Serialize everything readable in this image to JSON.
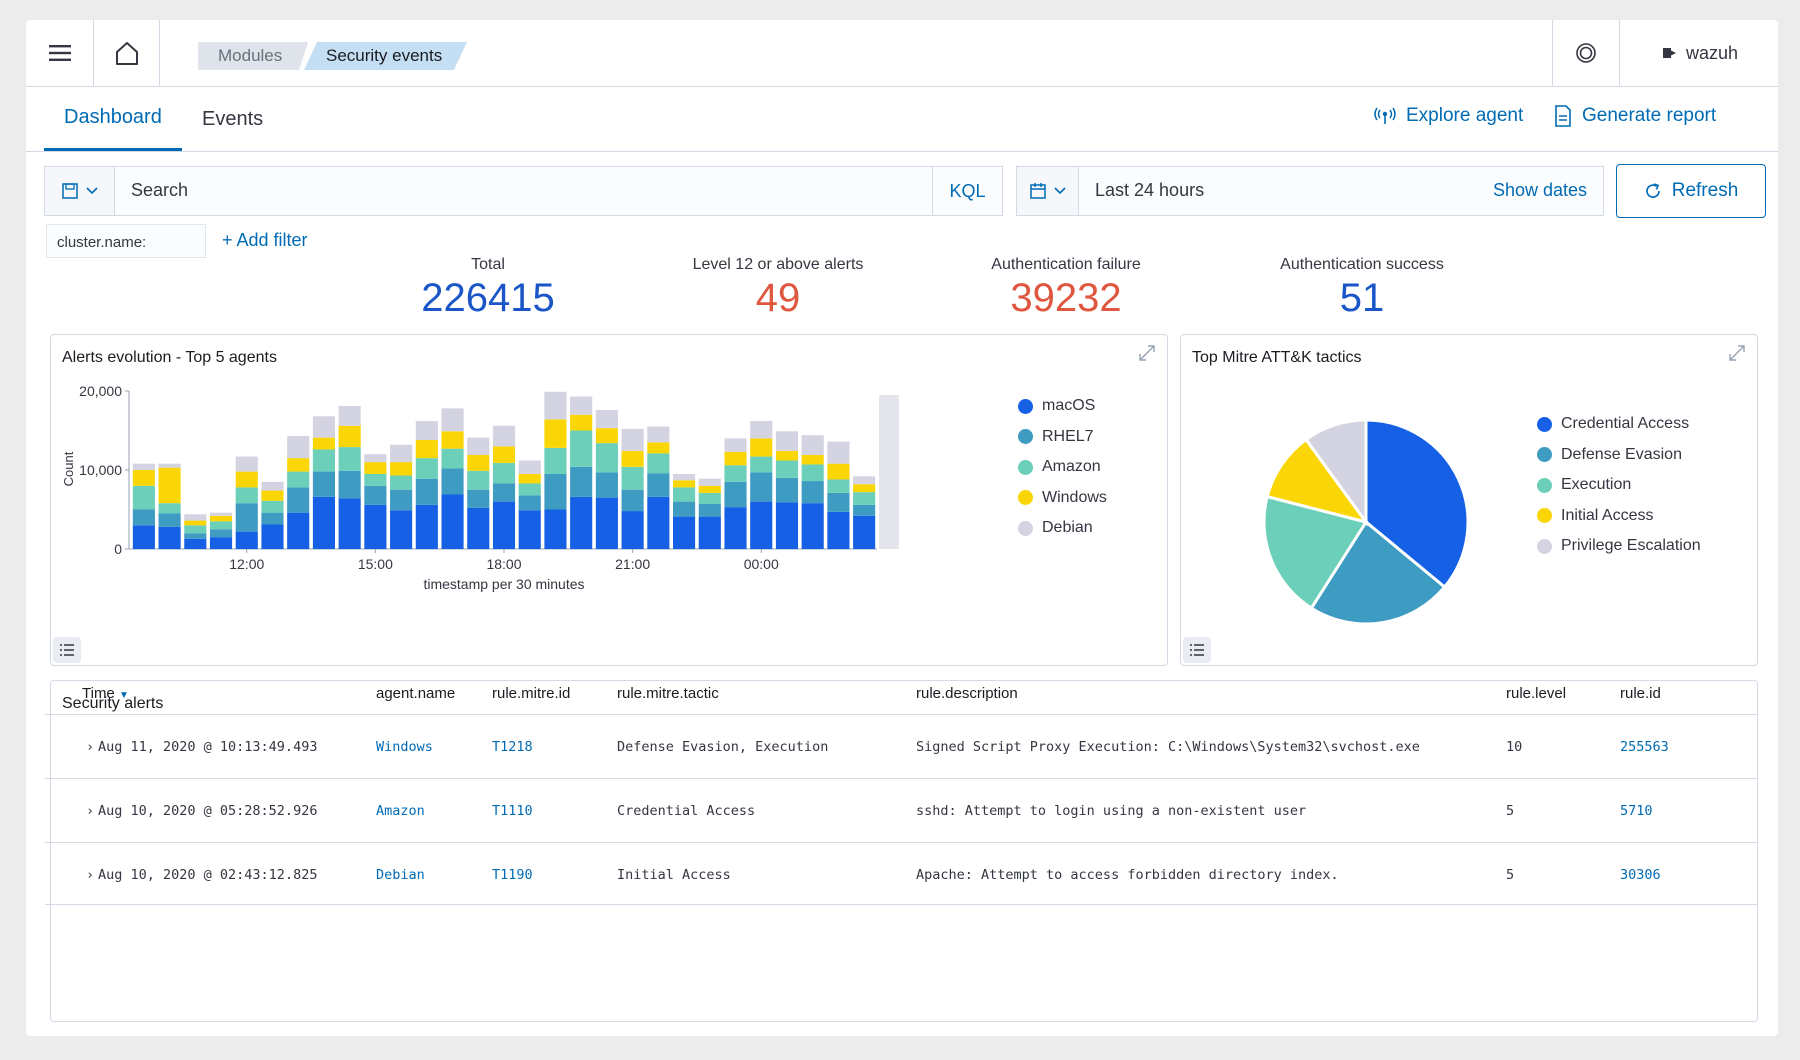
{
  "breadcrumbs": {
    "modules": "Modules",
    "current": "Security events"
  },
  "user": {
    "name": "wazuh"
  },
  "tabs": {
    "dashboard": "Dashboard",
    "events": "Events"
  },
  "actions": {
    "explore_agent": "Explore agent",
    "generate_report": "Generate report"
  },
  "query": {
    "placeholder": "Search",
    "kql": "KQL"
  },
  "date": {
    "range": "Last 24 hours",
    "show_dates": "Show dates",
    "refresh": "Refresh"
  },
  "filters": {
    "chip": "cluster.name:",
    "add": "+ Add filter"
  },
  "metrics": [
    {
      "label": "Total",
      "value": "226415",
      "color": "#1a56c8"
    },
    {
      "label": "Level 12 or above alerts",
      "value": "49",
      "color": "#e0573f"
    },
    {
      "label": "Authentication failure",
      "value": "39232",
      "color": "#e0573f"
    },
    {
      "label": "Authentication success",
      "value": "51",
      "color": "#1a56c8"
    }
  ],
  "colors": {
    "macOS": "#1660e6",
    "RHEL7": "#3e9bc2",
    "Amazon": "#6bcfb9",
    "Windows": "#fbd607",
    "Debian": "#d4d3e2",
    "accent": "#006bb4"
  },
  "alerts_panel": {
    "title": "Alerts evolution - Top 5 agents"
  },
  "mitre_panel": {
    "title": "Top Mitre ATT&K tactics"
  },
  "chart_data": [
    {
      "type": "bar",
      "stacked": true,
      "title": "Alerts evolution - Top 5 agents",
      "xlabel": "timestamp per 30 minutes",
      "ylabel": "Count",
      "ylim": [
        0,
        20000
      ],
      "yticks": [
        "0",
        "10,000",
        "20,000"
      ],
      "xticks": [
        {
          "label": "12:00",
          "index": 4
        },
        {
          "label": "15:00",
          "index": 9
        },
        {
          "label": "18:00",
          "index": 14
        },
        {
          "label": "21:00",
          "index": 19
        },
        {
          "label": "00:00",
          "index": 24
        }
      ],
      "legend_position": "right",
      "series": [
        {
          "name": "macOS",
          "values": [
            3000,
            2800,
            1300,
            1500,
            2200,
            3100,
            4600,
            6600,
            6400,
            5600,
            4900,
            5600,
            6900,
            5200,
            6000,
            4900,
            5000,
            6600,
            6500,
            4800,
            6600,
            4100,
            4100,
            5300,
            6000,
            5900,
            5800,
            4700,
            4200
          ]
        },
        {
          "name": "RHEL7",
          "values": [
            2000,
            1700,
            700,
            1000,
            3600,
            1500,
            3200,
            3200,
            3500,
            2400,
            2600,
            3300,
            3300,
            2300,
            2300,
            1900,
            4500,
            3800,
            3200,
            2700,
            3000,
            1900,
            1600,
            3200,
            3700,
            3100,
            2800,
            2400,
            1400
          ]
        },
        {
          "name": "Amazon",
          "values": [
            3000,
            1300,
            1000,
            1000,
            2000,
            1500,
            2000,
            2800,
            3000,
            1500,
            1800,
            2600,
            2500,
            2400,
            2600,
            1500,
            3300,
            4600,
            3700,
            2900,
            2500,
            1800,
            1400,
            2100,
            2000,
            2200,
            2100,
            1700,
            1600
          ]
        },
        {
          "name": "Windows",
          "values": [
            2000,
            4500,
            600,
            700,
            2000,
            1300,
            1700,
            1500,
            2700,
            1500,
            1700,
            2300,
            2200,
            2000,
            2100,
            1200,
            3600,
            2000,
            1900,
            2000,
            1400,
            900,
            900,
            1700,
            2300,
            1200,
            1200,
            2000,
            1000
          ]
        },
        {
          "name": "Debian",
          "values": [
            800,
            500,
            800,
            400,
            1900,
            1100,
            2800,
            2700,
            2500,
            1000,
            2200,
            2400,
            2900,
            2200,
            2600,
            1700,
            3500,
            2300,
            2300,
            2800,
            2000,
            800,
            900,
            1700,
            2200,
            2500,
            2500,
            2800,
            1000
          ]
        }
      ]
    },
    {
      "type": "pie",
      "title": "Top Mitre ATT&K tactics",
      "legend_position": "right",
      "series": [
        {
          "name": "Credential Access",
          "value": 36,
          "color": "#1660e6"
        },
        {
          "name": "Defense Evasion",
          "value": 23,
          "color": "#3e9bc2"
        },
        {
          "name": "Execution",
          "value": 20,
          "color": "#6bcfb9"
        },
        {
          "name": "Initial Access",
          "value": 11,
          "color": "#fbd607"
        },
        {
          "name": "Privilege Escalation",
          "value": 10,
          "color": "#d4d3e2"
        }
      ]
    }
  ],
  "table": {
    "title": "Security alerts",
    "columns": [
      "Time",
      "agent.name",
      "rule.mitre.id",
      "rule.mitre.tactic",
      "rule.description",
      "rule.level",
      "rule.id"
    ],
    "rows": [
      [
        "Aug 11, 2020 @ 10:13:49.493",
        "Windows",
        "T1218",
        "Defense Evasion, Execution",
        "Signed Script Proxy Execution: C:\\Windows\\System32\\svchost.exe",
        "10",
        "255563"
      ],
      [
        "Aug 10, 2020 @ 05:28:52.926",
        "Amazon",
        "T1110",
        "Credential Access",
        "sshd: Attempt to login using a non-existent user",
        "5",
        "5710"
      ],
      [
        "Aug 10, 2020 @ 02:43:12.825",
        "Debian",
        "T1190",
        "Initial Access",
        "Apache: Attempt to access forbidden directory index.",
        "5",
        "30306"
      ]
    ]
  }
}
